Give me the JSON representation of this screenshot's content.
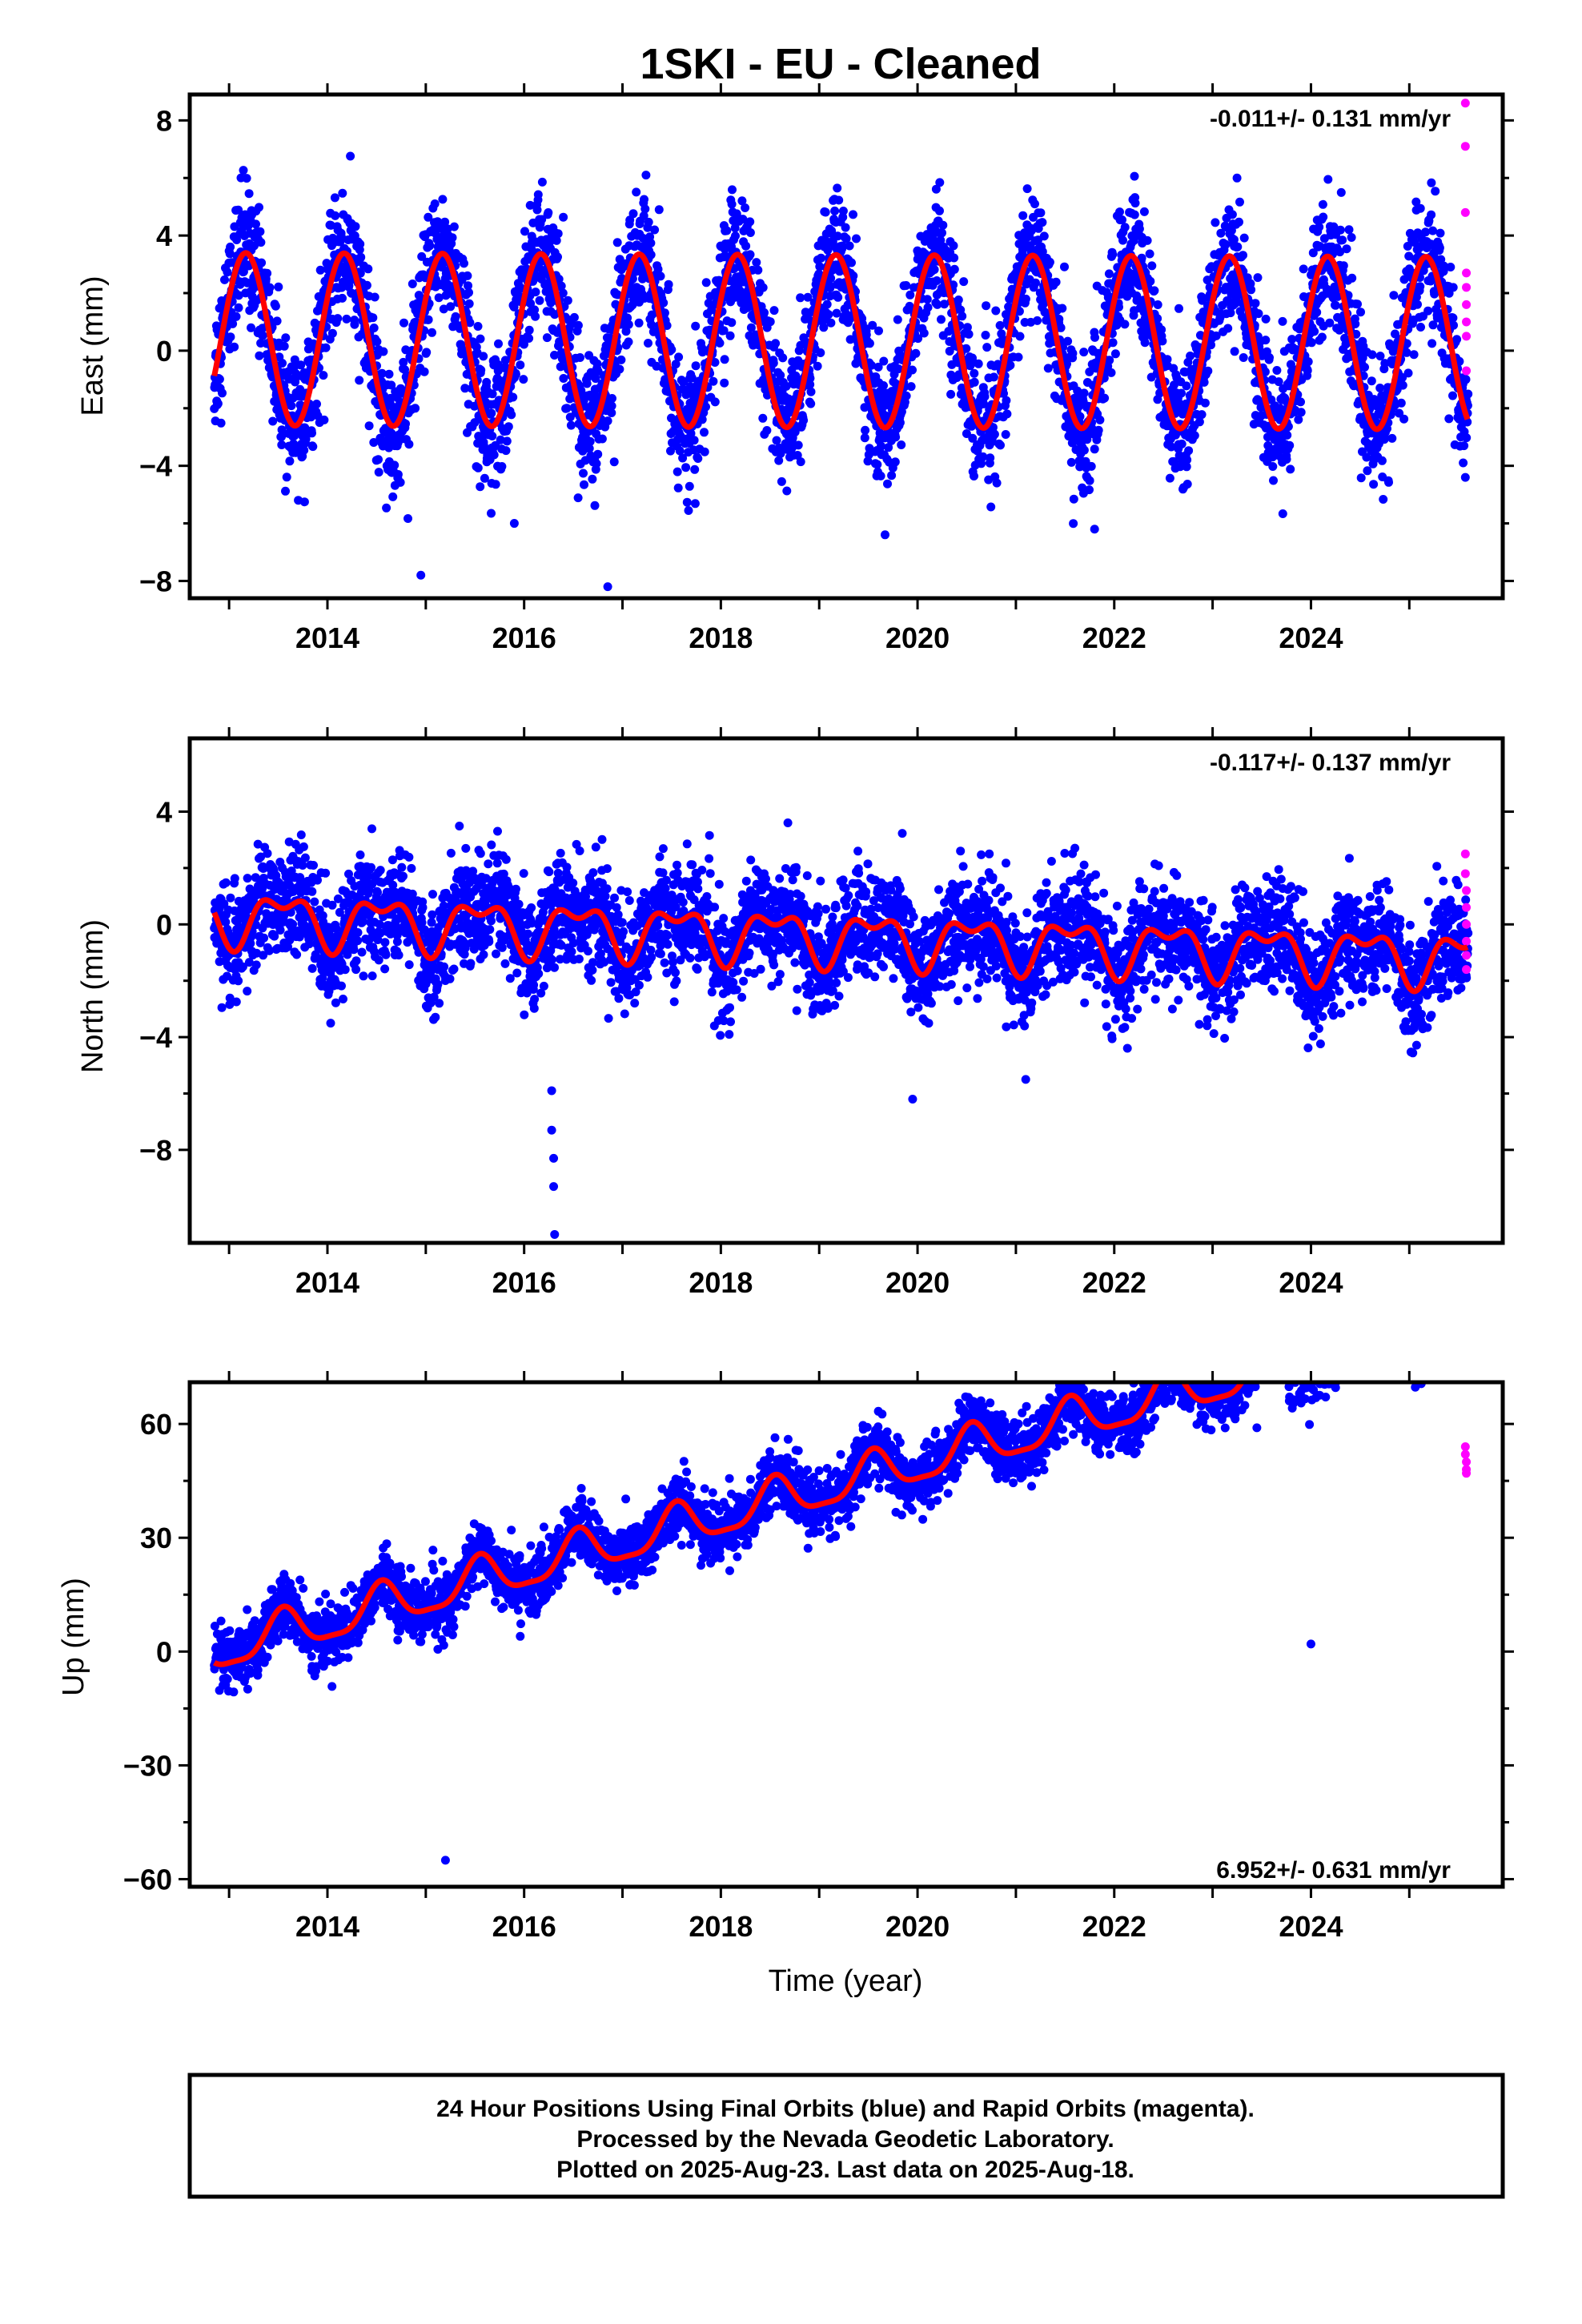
{
  "title": "1SKI  - EU - Cleaned",
  "xlabel": "Time (year)",
  "caption": [
    "24 Hour Positions Using Final Orbits (blue) and Rapid Orbits (magenta).",
    "Processed by the Nevada Geodetic Laboratory.",
    "Plotted on 2025-Aug-23. Last data on 2025-Aug-18."
  ],
  "colors": {
    "final": "#0000ff",
    "rapid": "#ff00ff",
    "model": "#ff0000",
    "frame": "#000000"
  },
  "chart_data": [
    {
      "type": "scatter",
      "ylabel": "East (mm)",
      "rate_label": "-0.011+/- 0.131 mm/yr",
      "xlim": [
        2012.6,
        2025.95
      ],
      "ylim": [
        -8.6,
        8.9
      ],
      "x_ticks": [
        2014,
        2016,
        2018,
        2020,
        2022,
        2024
      ],
      "x_tick_labels": [
        "2014",
        "2016",
        "2018",
        "2020",
        "2022",
        "2024"
      ],
      "y_ticks": [
        -8,
        -4,
        0,
        4,
        8
      ],
      "y_tick_labels": [
        "−8",
        "−4",
        "0",
        "4",
        "8"
      ],
      "model": {
        "start": 2012.85,
        "end": 2025.6,
        "offset": 0.4,
        "trend": -0.011,
        "annual_amp": 3.0,
        "annual_phase": 2013.17,
        "semi_amp": 0.0,
        "semi_phase": 0.0
      },
      "noise_sd": 1.1,
      "outliers": [
        [
          2014.95,
          -7.8
        ],
        [
          2016.85,
          -8.2
        ],
        [
          2015.9,
          -6.0
        ],
        [
          2021.8,
          -6.2
        ]
      ],
      "rapid": [
        [
          2025.57,
          8.6
        ],
        [
          2025.57,
          7.1
        ],
        [
          2025.57,
          4.8
        ],
        [
          2025.58,
          2.7
        ],
        [
          2025.58,
          2.2
        ],
        [
          2025.58,
          1.6
        ],
        [
          2025.58,
          1.0
        ],
        [
          2025.58,
          0.5
        ],
        [
          2025.58,
          -0.7
        ]
      ]
    },
    {
      "type": "scatter",
      "ylabel": "North (mm)",
      "rate_label": "-0.117+/- 0.137 mm/yr",
      "xlim": [
        2012.6,
        2025.95
      ],
      "ylim": [
        -11.3,
        6.6
      ],
      "x_ticks": [
        2014,
        2016,
        2018,
        2020,
        2022,
        2024
      ],
      "x_tick_labels": [
        "2014",
        "2016",
        "2018",
        "2020",
        "2022",
        "2024"
      ],
      "y_ticks": [
        -8,
        -4,
        0,
        4
      ],
      "y_tick_labels": [
        "−8",
        "−4",
        "0",
        "4"
      ],
      "model": {
        "start": 2012.85,
        "end": 2025.6,
        "offset": 0.3,
        "trend": -0.117,
        "annual_amp": 0.8,
        "annual_phase": 2013.55,
        "semi_amp": 0.45,
        "semi_phase": 2013.3
      },
      "noise_sd": 0.95,
      "outliers": [
        [
          2016.28,
          -5.9
        ],
        [
          2016.28,
          -7.3
        ],
        [
          2016.3,
          -8.3
        ],
        [
          2016.3,
          -9.3
        ],
        [
          2016.31,
          -11.0
        ],
        [
          2019.95,
          -6.2
        ],
        [
          2021.1,
          -5.5
        ]
      ],
      "rapid": [
        [
          2025.57,
          2.5
        ],
        [
          2025.57,
          1.8
        ],
        [
          2025.58,
          1.2
        ],
        [
          2025.58,
          0.6
        ],
        [
          2025.58,
          0.0
        ],
        [
          2025.58,
          -0.6
        ],
        [
          2025.58,
          -1.1
        ],
        [
          2025.58,
          -1.6
        ]
      ]
    },
    {
      "type": "scatter",
      "ylabel": "Up (mm)",
      "rate_label": "6.952+/- 0.631 mm/yr",
      "xlim": [
        2012.6,
        2025.95
      ],
      "ylim": [
        -62,
        71
      ],
      "x_ticks": [
        2014,
        2016,
        2018,
        2020,
        2022,
        2024
      ],
      "x_tick_labels": [
        "2014",
        "2016",
        "2018",
        "2020",
        "2022",
        "2024"
      ],
      "y_ticks": [
        -60,
        -30,
        0,
        30,
        60
      ],
      "y_tick_labels": [
        "−60",
        "−30",
        "0",
        "30",
        "60"
      ],
      "model": {
        "start": 2012.85,
        "end": 2025.6,
        "offset": 0.0,
        "trend": 6.952,
        "annual_amp": 5.5,
        "annual_phase": 2013.55,
        "semi_amp": 1.5,
        "semi_phase": 2013.55
      },
      "noise_sd": 4.0,
      "outliers": [
        [
          2023.45,
          59.0
        ],
        [
          2024.0,
          2.0
        ],
        [
          2015.2,
          -55.0
        ]
      ],
      "rapid": [
        [
          2025.57,
          54.0
        ],
        [
          2025.57,
          52.0
        ],
        [
          2025.58,
          50.0
        ],
        [
          2025.58,
          48.0
        ],
        [
          2025.58,
          47.0
        ]
      ]
    }
  ]
}
